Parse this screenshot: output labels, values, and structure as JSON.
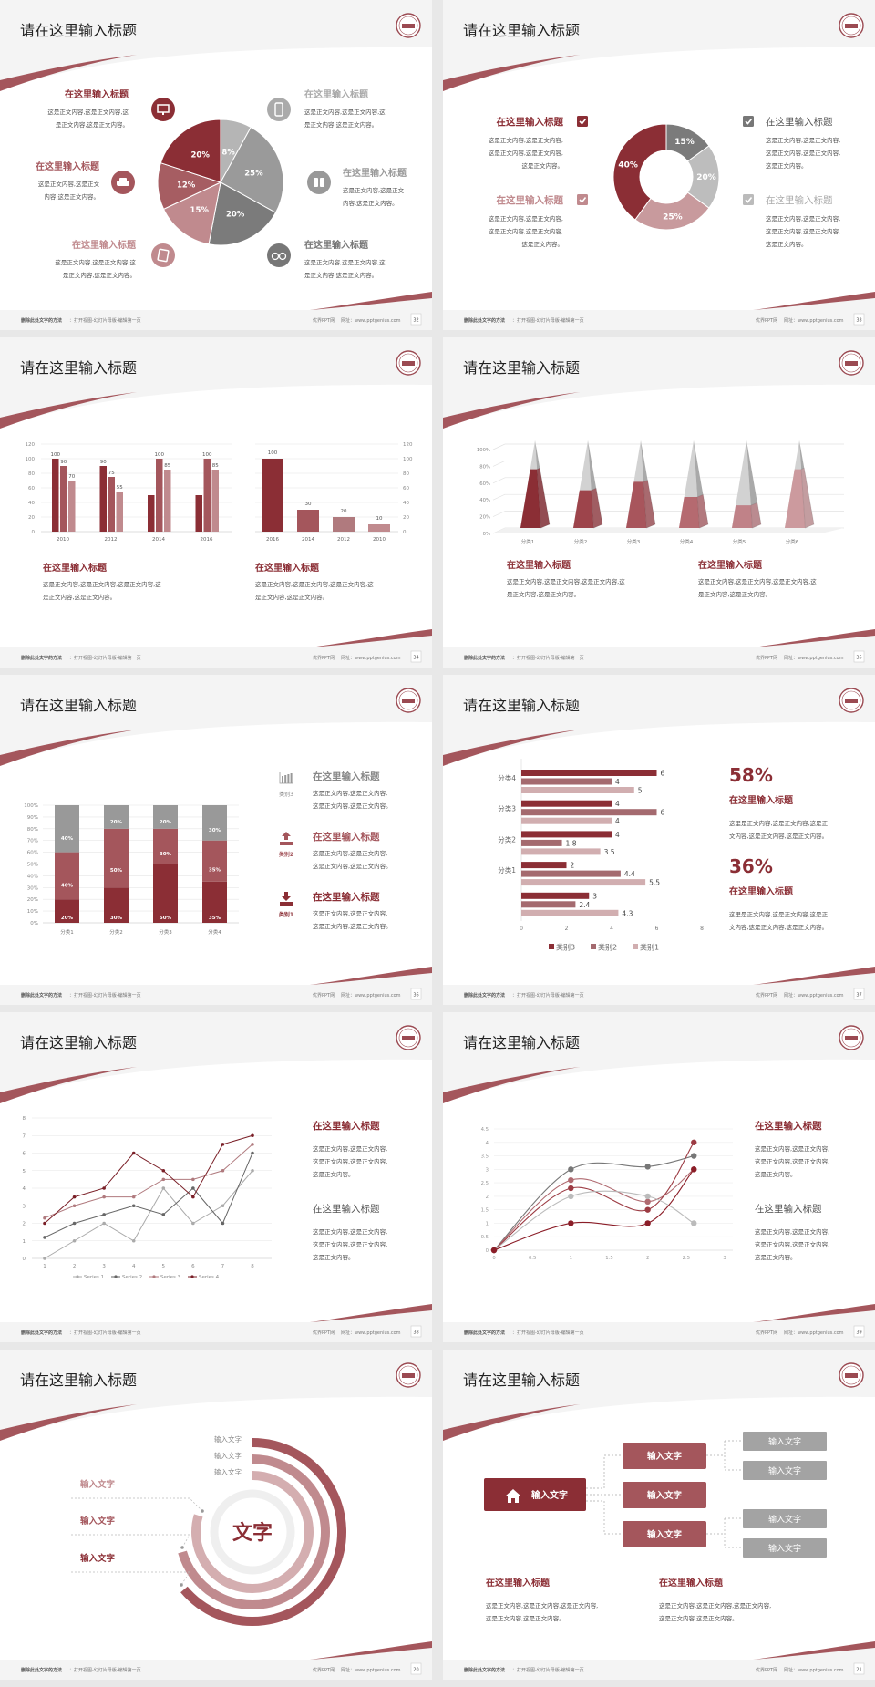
{
  "colors": {
    "dark_red": "#8b2e35",
    "red": "#a4565c",
    "rose": "#c08a8e",
    "light_rose": "#d4aeb0",
    "dark_gray": "#777777",
    "gray": "#9a9a9a",
    "light_gray": "#c4c4c4"
  },
  "footer": {
    "note_bold": "删除此处文字的方法",
    "note": "：打开视图-幻灯片母版-编辑第一页",
    "site": "优界PPT网",
    "url": "网址：www.pptgenius.com"
  },
  "slides": [
    {
      "page": "32",
      "title": "请在这里输入标题",
      "items": [
        {
          "title": "在这里输入标题",
          "body": [
            "这是正文内容,这是正文内容,这",
            "是正文内容,这是正文内容。"
          ],
          "icon": "monitor-icon"
        },
        {
          "title": "在这里输入标题",
          "body": [
            "这是正文内容,这是正文",
            "内容,这是正文内容。"
          ],
          "icon": "car-icon"
        },
        {
          "title": "在这里输入标题",
          "body": [
            "这是正文内容,这是正文内容,这",
            "是正文内容,这是正文内容。"
          ],
          "icon": "book-icon"
        },
        {
          "title": "在这里输入标题",
          "body": [
            "这是正文内容,这是正文内容,这",
            "是正文内容,这是正文内容。"
          ],
          "icon": "phone-icon"
        },
        {
          "title": "在这里输入标题",
          "body": [
            "这是正文内容,这是正文",
            "内容,这是正文内容。"
          ],
          "icon": "binoculars-icon"
        },
        {
          "title": "在这里输入标题",
          "body": [
            "这是正文内容,这是正文内容,这",
            "是正文内容,这是正文内容。"
          ],
          "icon": "bicycle-icon"
        }
      ]
    },
    {
      "page": "33",
      "title": "请在这里输入标题",
      "items": [
        {
          "title": "在这里输入标题",
          "body": [
            "这是正文内容,这是正文内容,",
            "这是正文内容,这是正文内容,",
            "这是正文内容。"
          ]
        },
        {
          "title": "在这里输入标题",
          "body": [
            "这是正文内容,这是正文内容,",
            "这是正文内容,这是正文内容,",
            "这是正文内容。"
          ]
        },
        {
          "title": "在这里输入标题",
          "body": [
            "这是正文内容,这是正文内容,",
            "这是正文内容,这是正文内容,",
            "这是正文内容。"
          ]
        },
        {
          "title": "在这里输入标题",
          "body": [
            "这是正文内容,这是正文内容,",
            "这是正文内容,这是正文内容,",
            "这是正文内容。"
          ]
        }
      ]
    },
    {
      "page": "34",
      "title": "请在这里输入标题",
      "items": [
        {
          "title": "在这里输入标题",
          "body": [
            "这是正文内容,这是正文内容,这是正文内容,这",
            "是正文内容,这是正文内容。"
          ]
        },
        {
          "title": "在这里输入标题",
          "body": [
            "这是正文内容,这是正文内容,这是正文内容,这",
            "是正文内容,这是正文内容。"
          ]
        }
      ]
    },
    {
      "page": "35",
      "title": "请在这里输入标题",
      "items": [
        {
          "title": "在这里输入标题",
          "body": [
            "这是正文内容,这是正文内容,这是正文内容,这",
            "是正文内容,这是正文内容。"
          ]
        },
        {
          "title": "在这里输入标题",
          "body": [
            "这是正文内容,这是正文内容,这是正文内容,这",
            "是正文内容,这是正文内容。"
          ]
        }
      ]
    },
    {
      "page": "36",
      "title": "请在这里输入标题",
      "items": [
        {
          "label": "类别3",
          "title": "在这里输入标题",
          "body": [
            "这是正文内容,这是正文内容,",
            "这是正文内容,这是正文内容。"
          ],
          "icon": "bar-chart-icon"
        },
        {
          "label": "类别2",
          "title": "在这里输入标题",
          "body": [
            "这是正文内容,这是正文内容,",
            "这是正文内容,这是正文内容。"
          ],
          "icon": "upload-icon"
        },
        {
          "label": "类别1",
          "title": "在这里输入标题",
          "body": [
            "这是正文内容,这是正文内容,",
            "这是正文内容,这是正文内容。"
          ],
          "icon": "download-icon"
        }
      ]
    },
    {
      "page": "37",
      "title": "请在这里输入标题",
      "items": [
        {
          "stat": "58%",
          "title": "在这里输入标题",
          "body": [
            "这里是正文内容,这是正文内容,这是正",
            "文内容,这是正文内容,这是正文内容。"
          ]
        },
        {
          "stat": "36%",
          "title": "在这里输入标题",
          "body": [
            "这里是正文内容,这是正文内容,这是正",
            "文内容,这是正文内容,这是正文内容。"
          ]
        }
      ]
    },
    {
      "page": "38",
      "title": "请在这里输入标题",
      "items": [
        {
          "title": "在这里输入标题",
          "body": [
            "这是正文内容,这是正文内容,",
            "这是正文内容,这是正文内容,",
            "这是正文内容。"
          ]
        },
        {
          "title": "在这里输入标题",
          "body": [
            "这是正文内容,这是正文内容,",
            "这是正文内容,这是正文内容,",
            "这是正文内容。"
          ]
        }
      ]
    },
    {
      "page": "39",
      "title": "请在这里输入标题",
      "items": [
        {
          "title": "在这里输入标题",
          "body": [
            "这是正文内容,这是正文内容,",
            "这是正文内容,这是正文内容,",
            "这是正文内容。"
          ]
        },
        {
          "title": "在这里输入标题",
          "body": [
            "这是正文内容,这是正文内容,",
            "这是正文内容,这是正文内容,",
            "这是正文内容。"
          ]
        }
      ]
    },
    {
      "page": "20",
      "title": "请在这里输入标题",
      "center": "文字",
      "ring_labels": [
        "输入文字",
        "输入文字",
        "输入文字"
      ],
      "left_labels": [
        "输入文字",
        "输入文字",
        "输入文字"
      ]
    },
    {
      "page": "21",
      "title": "请在这里输入标题",
      "root": "输入文字",
      "root_icon": "home-icon",
      "mid": [
        "输入文字",
        "输入文字",
        "输入文字"
      ],
      "leaves": [
        "输入文字",
        "输入文字",
        "输入文字",
        "输入文字"
      ],
      "items": [
        {
          "title": "在这里输入标题",
          "body": [
            "这是正文内容,这是正文内容,这是正文内容,",
            "这是正文内容,这是正文内容。"
          ]
        },
        {
          "title": "在这里输入标题",
          "body": [
            "这是正文内容,这是正文内容,这是正文内容,",
            "这是正文内容,这是正文内容。"
          ]
        }
      ]
    }
  ],
  "chart_data": [
    {
      "type": "pie",
      "values": [
        8,
        25,
        20,
        15,
        12,
        20
      ],
      "labels": [
        "8%",
        "25%",
        "20%",
        "15%",
        "12%",
        "20%"
      ],
      "colors": [
        "#b5b5b5",
        "#9a9a9a",
        "#7b7b7b",
        "#c08a8e",
        "#a65d62",
        "#8b2e35"
      ]
    },
    {
      "type": "pie",
      "donut": true,
      "values": [
        15,
        20,
        25,
        40
      ],
      "labels": [
        "15%",
        "20%",
        "25%",
        "40%"
      ],
      "colors": [
        "#7b7b7b",
        "#bdbdbd",
        "#c89a9d",
        "#8b2e35"
      ]
    },
    {
      "type": "bar",
      "categories": [
        "2010",
        "2012",
        "2014",
        "2016"
      ],
      "series": [
        {
          "values": [
            100,
            90,
            50,
            50
          ]
        },
        {
          "values": [
            90,
            75,
            100,
            100
          ]
        },
        {
          "values": [
            70,
            55,
            85,
            85
          ]
        }
      ],
      "data_labels": [
        [
          "100",
          "90",
          "",
          ""
        ],
        [
          "90",
          "75",
          "100",
          "100"
        ],
        [
          "70",
          "55",
          "85",
          "85"
        ]
      ],
      "ylim": [
        0,
        120
      ],
      "yticks": [
        "0",
        "20",
        "40",
        "60",
        "80",
        "100",
        "120"
      ],
      "grid": true
    },
    {
      "type": "bar",
      "categories": [
        "2016",
        "2014",
        "2012",
        "2010"
      ],
      "values": [
        100,
        30,
        20,
        10
      ],
      "data_labels": [
        "100",
        "30",
        "20",
        "10"
      ],
      "ylim": [
        0,
        120
      ],
      "yticks": [
        "0",
        "20",
        "40",
        "60",
        "80",
        "100",
        "120"
      ],
      "axis": "right",
      "grid": true
    },
    {
      "type": "bar",
      "variant": "3d-pyramid",
      "categories": [
        "分类1",
        "分类2",
        "分类3",
        "分类4",
        "分类5",
        "分类6"
      ],
      "values": [
        70,
        45,
        55,
        37,
        27,
        70
      ],
      "ylim": [
        0,
        100
      ],
      "yticks": [
        "0%",
        "20%",
        "40%",
        "60%",
        "80%",
        "100%"
      ],
      "grid": true
    },
    {
      "type": "bar",
      "stacked": true,
      "categories": [
        "分类1",
        "分类2",
        "分类3",
        "分类4"
      ],
      "series": [
        {
          "values": [
            20,
            30,
            50,
            35
          ],
          "labels": [
            "20%",
            "30%",
            "50%",
            "35%"
          ]
        },
        {
          "values": [
            40,
            50,
            30,
            35
          ],
          "labels": [
            "40%",
            "50%",
            "30%",
            "35%"
          ]
        },
        {
          "values": [
            40,
            20,
            20,
            30
          ],
          "labels": [
            "40%",
            "20%",
            "20%",
            "30%"
          ]
        }
      ],
      "ylim": [
        0,
        100
      ],
      "yticks": [
        "0%",
        "10%",
        "20%",
        "30%",
        "40%",
        "50%",
        "60%",
        "70%",
        "80%",
        "90%",
        "100%"
      ],
      "grid": true
    },
    {
      "type": "bar",
      "orientation": "horizontal",
      "categories": [
        "分类4",
        "分类3",
        "分类2",
        "分类1",
        ""
      ],
      "series": [
        {
          "name": "类别3",
          "values": [
            6,
            4,
            4,
            2,
            3
          ],
          "labels": [
            "6",
            "4",
            "4",
            "2",
            "3"
          ]
        },
        {
          "name": "类别2",
          "values": [
            4,
            6,
            1.8,
            4.4,
            2.4
          ],
          "labels": [
            "4",
            "6",
            "1.8",
            "4.4",
            "2.4"
          ]
        },
        {
          "name": "类别1",
          "values": [
            5,
            4,
            3.5,
            5.5,
            4.3
          ],
          "labels": [
            "5",
            "4",
            "3.5",
            "5.5",
            "4.3"
          ]
        }
      ],
      "xlim": [
        0,
        8
      ],
      "xticks": [
        "0",
        "2",
        "4",
        "6",
        "8"
      ],
      "legend": "bottom"
    },
    {
      "type": "line",
      "x": [
        1,
        2,
        3,
        4,
        5,
        6,
        7,
        8
      ],
      "xticks": [
        "1",
        "2",
        "3",
        "4",
        "5",
        "6",
        "7",
        "8"
      ],
      "series": [
        {
          "name": "Series 1",
          "values": [
            0,
            1,
            2,
            1,
            4,
            2,
            3,
            5
          ]
        },
        {
          "name": "Series 2",
          "values": [
            1.2,
            2,
            2.5,
            3,
            2.5,
            4,
            2,
            6
          ]
        },
        {
          "name": "Series 3",
          "values": [
            2.3,
            3,
            3.5,
            3.5,
            4.5,
            4.5,
            5,
            6.5
          ]
        },
        {
          "name": "Series 4",
          "values": [
            2,
            3.5,
            4,
            6,
            5,
            3.5,
            6.5,
            7
          ]
        }
      ],
      "ylim": [
        0,
        8
      ],
      "yticks": [
        "0",
        "1",
        "2",
        "3",
        "4",
        "5",
        "6",
        "7",
        "8"
      ],
      "legend": "bottom",
      "grid": true
    },
    {
      "type": "scatter",
      "smooth": true,
      "x": [
        0,
        1,
        2,
        2.6
      ],
      "series": [
        {
          "values": [
            0,
            3,
            3.1,
            3.5
          ]
        },
        {
          "values": [
            0,
            2.6,
            1.8,
            3
          ]
        },
        {
          "values": [
            0,
            2.3,
            1.5,
            4
          ]
        },
        {
          "values": [
            0,
            2,
            2,
            1
          ]
        },
        {
          "values": [
            0,
            1,
            1,
            3
          ]
        }
      ],
      "xlim": [
        0,
        3
      ],
      "xticks": [
        "0",
        "0.5",
        "1",
        "1.5",
        "2",
        "2.5",
        "3"
      ],
      "ylim": [
        0,
        4.5
      ],
      "yticks": [
        "0",
        "0.5",
        "1",
        "1.5",
        "2",
        "2.5",
        "3",
        "3.5",
        "4",
        "4.5"
      ],
      "grid": true
    }
  ]
}
